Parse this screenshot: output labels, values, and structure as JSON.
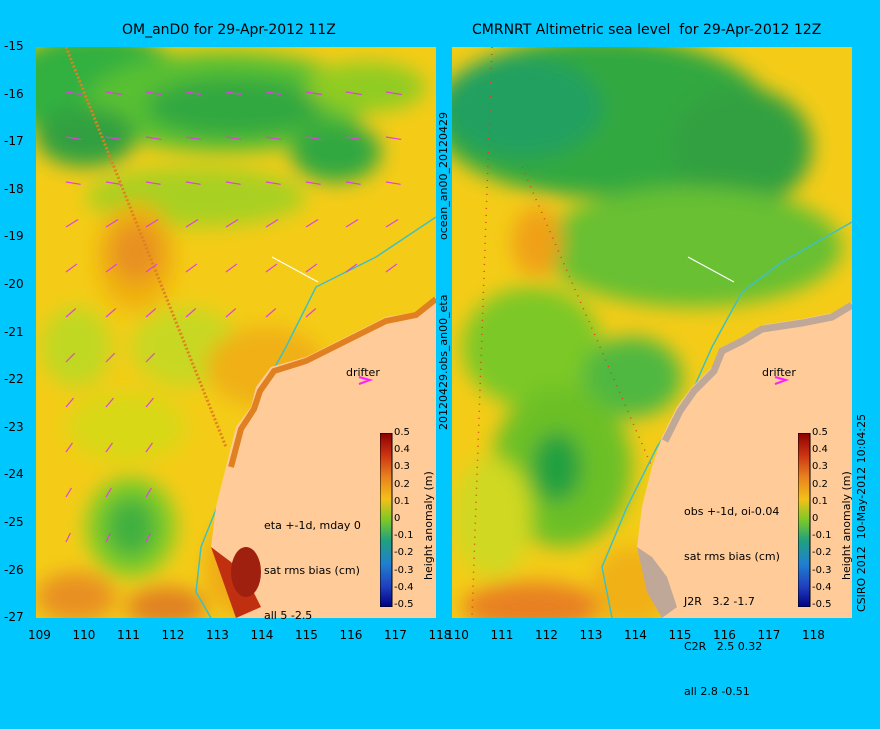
{
  "left_panel": {
    "title": "OM_anD0 for 29-Apr-2012 11Z",
    "side_label": "ocean_an00_20120429",
    "annotation": [
      "eta +-1d, mday 0",
      "sat rms bias (cm)",
      "all 5 -2.5"
    ],
    "drifter_label": "drifter"
  },
  "right_panel": {
    "title": "CMRNRT Altimetric sea level  for 29-Apr-2012 12Z",
    "side_label": "20120429.obs_an00_eta",
    "annotation": [
      "obs +-1d, oi-0.04",
      "sat rms bias (cm)",
      "J2R   3.2 -1.7",
      "C2R   2.5 0.32",
      "all 2.8 -0.51"
    ],
    "drifter_label": "drifter",
    "footer": "CSIRO 2012  10-May-2012 10:04:25"
  },
  "colorbar": {
    "label": "height anomaly (m)",
    "ticks": [
      "0.5",
      "0.4",
      "0.3",
      "0.2",
      "0.1",
      "0",
      "-0.1",
      "-0.2",
      "-0.3",
      "-0.4",
      "-0.5"
    ]
  },
  "axes": {
    "x_ticks": [
      "109",
      "110",
      "111",
      "112",
      "113",
      "114",
      "115",
      "116",
      "117",
      "118"
    ],
    "right_x_ticks": [
      "110",
      "111",
      "112",
      "113",
      "114",
      "115",
      "116",
      "117",
      "118"
    ],
    "y_ticks": [
      "-15",
      "-16",
      "-17",
      "-18",
      "-19",
      "-20",
      "-21",
      "-22",
      "-23",
      "-24",
      "-25",
      "-26",
      "-27"
    ],
    "lon_range": [
      109,
      118
    ],
    "lat_range": [
      -27,
      -15
    ]
  },
  "colors": {
    "background": "#00c8ff",
    "land": "#ffcc99",
    "shelf_isobath": "#40c0c0",
    "current_vectors": "#e040e0",
    "track": "#e06020"
  }
}
